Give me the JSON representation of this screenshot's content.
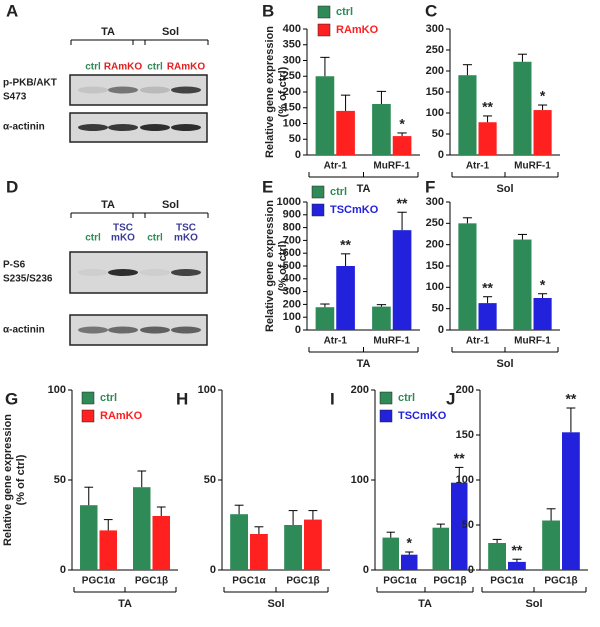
{
  "blots": [
    {
      "panel": "A",
      "groups": [
        "TA",
        "Sol"
      ],
      "lanes": [
        [
          "ctrl"
        ],
        [
          "RAmKO"
        ],
        [
          "ctrl"
        ],
        [
          "RAmKO"
        ]
      ],
      "lane_colors": [
        "#2e8b57",
        "#e02020",
        "#2e8b57",
        "#e02020"
      ],
      "rows": [
        [
          "p-PKB/AKT",
          "S473"
        ],
        [
          "α-actinin"
        ]
      ]
    },
    {
      "panel": "D",
      "groups": [
        "TA",
        "Sol"
      ],
      "lanes": [
        [
          "ctrl"
        ],
        [
          "TSC",
          "mKO"
        ],
        [
          "ctrl"
        ],
        [
          "TSC",
          "mKO"
        ]
      ],
      "lane_colors": [
        "#2e8b57",
        "#3b3b9a",
        "#2e8b57",
        "#3b3b9a"
      ],
      "rows": [
        [
          "P-S6",
          "S235/S236"
        ],
        [
          "α-actinin"
        ]
      ]
    }
  ],
  "chart_data": [
    {
      "type": "bar",
      "panel": "B",
      "ylabel": [
        "Relative gene expression",
        "(% of ctrl)"
      ],
      "categories": [
        "Atr-1",
        "MuRF-1"
      ],
      "group": "TA",
      "series": [
        {
          "name": "ctrl",
          "color": "#2e8b57",
          "values": [
            250,
            162
          ],
          "errors": [
            60,
            40
          ],
          "significance": [
            null,
            null
          ]
        },
        {
          "name": "RAmKO",
          "color": "#ff2020",
          "values": [
            140,
            60
          ],
          "errors": [
            50,
            10
          ],
          "significance": [
            null,
            "*"
          ]
        }
      ],
      "ylim": [
        0,
        400
      ],
      "yticks": [
        0,
        50,
        100,
        150,
        200,
        250,
        300,
        350,
        400
      ]
    },
    {
      "type": "bar",
      "panel": "C",
      "categories": [
        "Atr-1",
        "MuRF-1"
      ],
      "group": "Sol",
      "series": [
        {
          "color": "#2e8b57",
          "values": [
            190,
            222
          ],
          "errors": [
            25,
            18
          ],
          "significance": [
            null,
            null
          ]
        },
        {
          "color": "#ff2020",
          "values": [
            78,
            107
          ],
          "errors": [
            15,
            12
          ],
          "significance": [
            "**",
            "*"
          ]
        }
      ],
      "ylim": [
        0,
        300
      ],
      "yticks": [
        0,
        50,
        100,
        150,
        200,
        250,
        300
      ]
    },
    {
      "type": "bar",
      "panel": "E",
      "ylabel": [
        "Relative gene expression",
        "(% of ctrl)"
      ],
      "categories": [
        "Atr-1",
        "MuRF-1"
      ],
      "group": "TA",
      "series": [
        {
          "name": "ctrl",
          "color": "#2e8b57",
          "values": [
            178,
            183
          ],
          "errors": [
            25,
            15
          ],
          "significance": [
            null,
            null
          ]
        },
        {
          "name": "TSCmKO",
          "color": "#2222dd",
          "values": [
            500,
            780
          ],
          "errors": [
            95,
            140
          ],
          "significance": [
            "**",
            "**"
          ]
        }
      ],
      "ylim": [
        0,
        1000
      ],
      "yticks": [
        0,
        100,
        200,
        300,
        400,
        500,
        600,
        700,
        800,
        900,
        1000
      ]
    },
    {
      "type": "bar",
      "panel": "F",
      "categories": [
        "Atr-1",
        "MuRF-1"
      ],
      "group": "Sol",
      "series": [
        {
          "color": "#2e8b57",
          "values": [
            250,
            212
          ],
          "errors": [
            13,
            12
          ],
          "significance": [
            null,
            null
          ]
        },
        {
          "color": "#2222dd",
          "values": [
            63,
            75
          ],
          "errors": [
            15,
            10
          ],
          "significance": [
            "**",
            "*"
          ]
        }
      ],
      "ylim": [
        0,
        300
      ],
      "yticks": [
        0,
        50,
        100,
        150,
        200,
        250,
        300
      ]
    },
    {
      "type": "bar",
      "panel": "G",
      "ylabel": [
        "Relative gene expression",
        "(% of ctrl)"
      ],
      "categories": [
        "PGC1α",
        "PGC1β"
      ],
      "group": "TA",
      "series": [
        {
          "name": "ctrl",
          "color": "#2e8b57",
          "values": [
            36,
            46
          ],
          "errors": [
            10,
            9
          ],
          "significance": [
            null,
            null
          ]
        },
        {
          "name": "RAmKO",
          "color": "#ff2020",
          "values": [
            22,
            30
          ],
          "errors": [
            6,
            5
          ],
          "significance": [
            null,
            null
          ]
        }
      ],
      "ylim": [
        0,
        100
      ],
      "yticks": [
        0,
        50,
        100
      ]
    },
    {
      "type": "bar",
      "panel": "H",
      "categories": [
        "PGC1α",
        "PGC1β"
      ],
      "group": "Sol",
      "series": [
        {
          "color": "#2e8b57",
          "values": [
            31,
            25
          ],
          "errors": [
            5,
            8
          ],
          "significance": [
            null,
            null
          ]
        },
        {
          "color": "#ff2020",
          "values": [
            20,
            28
          ],
          "errors": [
            4,
            5
          ],
          "significance": [
            null,
            null
          ]
        }
      ],
      "ylim": [
        0,
        100
      ],
      "yticks": [
        0,
        50,
        100
      ]
    },
    {
      "type": "bar",
      "panel": "I",
      "categories": [
        "PGC1α",
        "PGC1β"
      ],
      "group": "TA",
      "series": [
        {
          "name": "ctrl",
          "color": "#2e8b57",
          "values": [
            36,
            47
          ],
          "errors": [
            6,
            4
          ],
          "significance": [
            null,
            null
          ]
        },
        {
          "name": "TSCmKO",
          "color": "#2222dd",
          "values": [
            17,
            97
          ],
          "errors": [
            3,
            17
          ],
          "significance": [
            "*",
            "**"
          ]
        }
      ],
      "ylim": [
        0,
        200
      ],
      "yticks": [
        0,
        100,
        200
      ]
    },
    {
      "type": "bar",
      "panel": "J",
      "categories": [
        "PGC1α",
        "PGC1β"
      ],
      "group": "Sol",
      "series": [
        {
          "color": "#2e8b57",
          "values": [
            30,
            55
          ],
          "errors": [
            4,
            13
          ],
          "significance": [
            null,
            null
          ]
        },
        {
          "color": "#2222dd",
          "values": [
            9,
            153
          ],
          "errors": [
            3,
            27
          ],
          "significance": [
            "**",
            "**"
          ]
        }
      ],
      "ylim": [
        0,
        200
      ],
      "yticks": [
        0,
        50,
        100,
        150,
        200
      ]
    }
  ]
}
